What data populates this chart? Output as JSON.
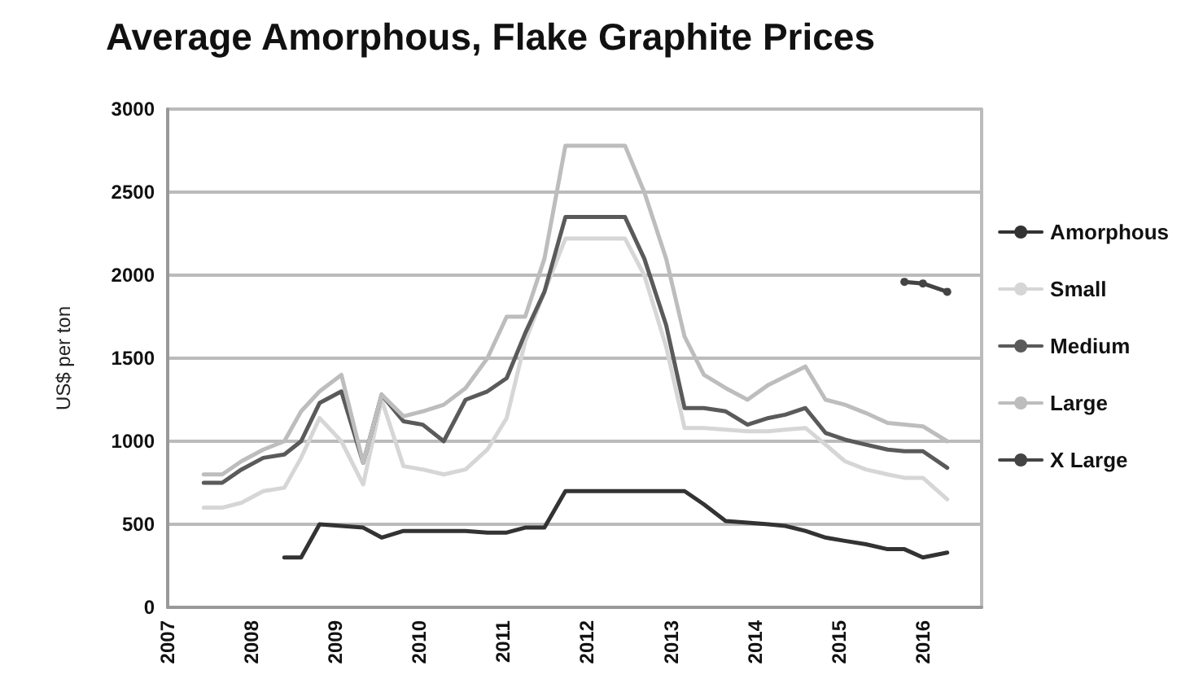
{
  "chart_data": {
    "type": "line",
    "title": "Average Amorphous, Flake Graphite Prices",
    "ylabel": "US$ per ton",
    "x": [
      2007.43,
      2007.65,
      2007.88,
      2008.14,
      2008.39,
      2008.59,
      2008.81,
      2009.07,
      2009.33,
      2009.55,
      2009.81,
      2010.04,
      2010.29,
      2010.55,
      2010.81,
      2011.04,
      2011.26,
      2011.49,
      2011.74,
      2012.45,
      2012.68,
      2012.94,
      2013.16,
      2013.39,
      2013.65,
      2013.91,
      2014.16,
      2014.36,
      2014.6,
      2014.84,
      2015.07,
      2015.32,
      2015.58,
      2015.78,
      2016.0,
      2016.29
    ],
    "series": [
      {
        "name": "Amorphous",
        "color": "#333333",
        "x": [
          2008.39,
          2008.59,
          2008.81,
          2009.07,
          2009.33,
          2009.55,
          2009.81,
          2010.04,
          2010.29,
          2010.55,
          2010.81,
          2011.04,
          2011.26,
          2011.49,
          2011.74,
          2012.45,
          2012.68,
          2012.94,
          2013.16,
          2013.39,
          2013.65,
          2013.91,
          2014.16,
          2014.36,
          2014.6,
          2014.84,
          2015.07,
          2015.32,
          2015.58,
          2015.78,
          2016.0,
          2016.29
        ],
        "values": [
          300,
          300,
          500,
          490,
          480,
          420,
          460,
          460,
          460,
          460,
          450,
          450,
          480,
          480,
          700,
          700,
          700,
          700,
          700,
          620,
          520,
          510,
          500,
          490,
          460,
          420,
          400,
          380,
          350,
          350,
          300,
          330
        ]
      },
      {
        "name": "Small",
        "color": "#d6d6d6",
        "values": [
          600,
          600,
          630,
          700,
          720,
          900,
          1140,
          1000,
          740,
          1250,
          850,
          830,
          800,
          830,
          950,
          1140,
          1600,
          1900,
          2220,
          2220,
          2000,
          1570,
          1080,
          1080,
          1070,
          1060,
          1060,
          1070,
          1080,
          980,
          880,
          830,
          800,
          780,
          780,
          650
        ]
      },
      {
        "name": "Medium",
        "color": "#5a5a5a",
        "values": [
          750,
          750,
          830,
          900,
          920,
          1000,
          1230,
          1300,
          870,
          1280,
          1120,
          1100,
          1000,
          1250,
          1300,
          1380,
          1650,
          1900,
          2350,
          2350,
          2100,
          1700,
          1200,
          1200,
          1180,
          1100,
          1140,
          1160,
          1200,
          1050,
          1010,
          980,
          950,
          940,
          940,
          840
        ]
      },
      {
        "name": "Large",
        "color": "#bdbdbd",
        "values": [
          800,
          800,
          880,
          950,
          1000,
          1180,
          1300,
          1400,
          870,
          1280,
          1150,
          1180,
          1220,
          1320,
          1500,
          1750,
          1750,
          2100,
          2780,
          2780,
          2500,
          2100,
          1630,
          1400,
          1320,
          1250,
          1340,
          1390,
          1450,
          1250,
          1220,
          1170,
          1110,
          1100,
          1090,
          1000
        ]
      },
      {
        "name": "X Large",
        "color": "#444444",
        "marker": "circle",
        "x": [
          2015.78,
          2016.0,
          2016.29
        ],
        "values": [
          1960,
          1950,
          1900
        ]
      }
    ],
    "xlim": [
      2007,
      2016.7
    ],
    "xticks": [
      2007,
      2008,
      2009,
      2010,
      2011,
      2012,
      2013,
      2014,
      2015,
      2016
    ],
    "ylim": [
      0,
      3000
    ],
    "yticks": [
      0,
      500,
      1000,
      1500,
      2000,
      2500,
      3000
    ],
    "grid": "y",
    "legend": "right",
    "marker": "none",
    "line_style": "solid"
  }
}
